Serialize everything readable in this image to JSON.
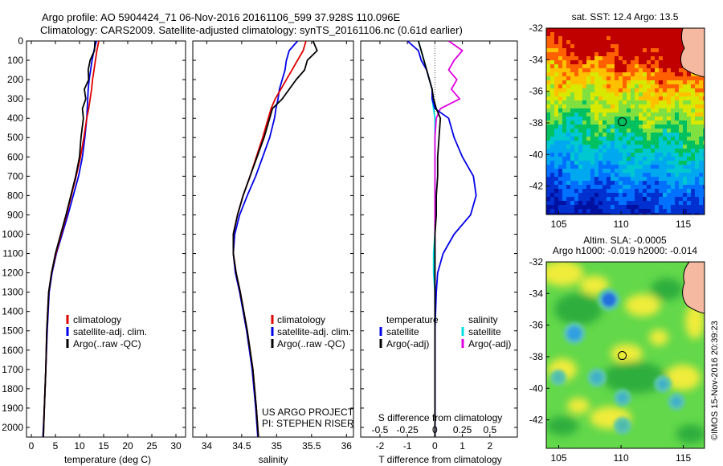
{
  "header": {
    "title_line1": "Argo profile: AO 5904424_71 06-Nov-2016 20161106_599 37.928S 110.096E",
    "title_line2": "Climatology: CARS2009. Satellite-adjusted climatology: synTS_20161106.nc (0.61d earlier)"
  },
  "colors": {
    "climatology": "#e00000",
    "satellite": "#0000e6",
    "argo": "#000000",
    "salinity_satellite": "#00e0e0",
    "salinity_argo": "#e000e0"
  },
  "depth_axis": {
    "ylim": [
      0,
      2050
    ],
    "ticks": [
      "0",
      "100",
      "200",
      "300",
      "400",
      "500",
      "600",
      "700",
      "800",
      "900",
      "1000",
      "1100",
      "1200",
      "1300",
      "1400",
      "1500",
      "1600",
      "1700",
      "1800",
      "1900",
      "2000"
    ]
  },
  "chart_data": [
    {
      "type": "line",
      "name": "temperature-profile",
      "xlabel": "temperature (deg C)",
      "xlim": [
        -1,
        32
      ],
      "xticks": [
        0,
        5,
        10,
        15,
        20,
        25,
        30
      ],
      "xtick_labels": [
        "0",
        "5",
        "10",
        "15",
        "20",
        "25",
        "30"
      ],
      "y": [
        0,
        50,
        100,
        150,
        200,
        250,
        300,
        350,
        400,
        500,
        600,
        700,
        800,
        900,
        1000,
        1100,
        1200,
        1300,
        1500,
        1700,
        1900,
        2050
      ],
      "series": [
        {
          "name": "climatology",
          "values": [
            14.0,
            13.6,
            13.3,
            13.0,
            12.7,
            12.5,
            12.2,
            11.9,
            11.5,
            10.9,
            10.2,
            9.3,
            8.3,
            7.3,
            6.2,
            5.1,
            4.2,
            3.6,
            3.2,
            3.0,
            2.7,
            2.5
          ]
        },
        {
          "name": "satellite-adj. clim.",
          "values": [
            13.5,
            13.0,
            12.6,
            12.3,
            12.0,
            11.8,
            11.7,
            11.6,
            11.5,
            11.1,
            10.6,
            9.8,
            8.7,
            7.6,
            6.4,
            5.2,
            4.3,
            3.7,
            3.3,
            3.0,
            2.7,
            2.4
          ]
        },
        {
          "name": "Argo(..raw -QC)",
          "values": [
            13.2,
            13.1,
            12.2,
            11.8,
            11.9,
            11.0,
            11.3,
            10.6,
            10.8,
            10.3,
            10.0,
            9.2,
            8.2,
            7.2,
            6.1,
            5.0,
            4.2,
            3.6,
            3.2,
            3.0,
            2.7,
            2.5
          ]
        }
      ],
      "legend": {
        "placement": "lower-middle",
        "entries": [
          "climatology",
          "satellite-adj. clim.",
          "Argo(..raw -QC)"
        ]
      }
    },
    {
      "type": "line",
      "name": "salinity-profile",
      "xlabel": "salinity",
      "xlim": [
        33.8,
        36.1
      ],
      "xticks": [
        34,
        34.5,
        35,
        35.5,
        36
      ],
      "xtick_labels": [
        "34",
        "34.5",
        "35",
        "35.5",
        "36"
      ],
      "y": [
        0,
        50,
        100,
        150,
        200,
        250,
        300,
        350,
        400,
        500,
        600,
        700,
        800,
        900,
        1000,
        1100,
        1200,
        1300,
        1500,
        1700,
        1900,
        2050
      ],
      "series": [
        {
          "name": "climatology",
          "values": [
            35.42,
            35.38,
            35.3,
            35.22,
            35.14,
            35.06,
            34.98,
            34.92,
            34.88,
            34.8,
            34.71,
            34.62,
            34.52,
            34.44,
            34.38,
            34.38,
            34.42,
            34.48,
            34.58,
            34.66,
            34.71,
            34.74
          ]
        },
        {
          "name": "satellite-adj. clim.",
          "values": [
            35.3,
            35.18,
            35.14,
            35.12,
            35.08,
            35.04,
            35.02,
            34.99,
            34.97,
            34.9,
            34.8,
            34.7,
            34.58,
            34.47,
            34.4,
            34.38,
            34.41,
            34.47,
            34.57,
            34.65,
            34.7,
            34.73
          ]
        },
        {
          "name": "Argo(..raw -QC)",
          "values": [
            35.52,
            35.58,
            35.44,
            35.4,
            35.28,
            35.18,
            35.08,
            34.94,
            34.9,
            34.82,
            34.72,
            34.62,
            34.52,
            34.44,
            34.38,
            34.38,
            34.42,
            34.48,
            34.58,
            34.66,
            34.71,
            34.74
          ]
        }
      ],
      "legend": {
        "placement": "lower-middle",
        "entries": [
          "climatology",
          "satellite-adj. clim.",
          "Argo(..raw -QC)"
        ]
      },
      "annotations": [
        "US ARGO PROJECT",
        "PI: STEPHEN RISER"
      ]
    },
    {
      "type": "line",
      "name": "difference-profile",
      "xlabel": "T difference from climatology",
      "xlim": [
        -2.7,
        3.0
      ],
      "xticks": [
        -2,
        -1,
        0,
        1,
        2
      ],
      "xtick_labels": [
        "-2",
        "-1",
        "0",
        "1",
        "2"
      ],
      "top_xlabel": "S difference from climatology",
      "top_xticks": [
        -0.5,
        -0.25,
        0,
        0.25,
        0.5
      ],
      "top_xtick_labels": [
        "-0.5",
        "-0.25",
        "0",
        "0.25",
        "0.5"
      ],
      "y": [
        0,
        50,
        100,
        150,
        200,
        250,
        300,
        350,
        400,
        500,
        600,
        700,
        800,
        900,
        1000,
        1100,
        1200,
        1300,
        1500,
        1700,
        1900,
        2050
      ],
      "series": [
        {
          "name": "temperature satellite",
          "values": [
            -1.0,
            -0.6,
            -0.5,
            -0.3,
            -0.2,
            -0.1,
            -0.1,
            0.0,
            0.5,
            0.7,
            1.0,
            1.4,
            1.5,
            1.3,
            0.7,
            0.3,
            0.1,
            0.05,
            0.0,
            0.0,
            0.0,
            0.0
          ]
        },
        {
          "name": "temperature Argo(-adj)",
          "values": [
            -0.6,
            -0.5,
            -0.4,
            -0.3,
            -0.2,
            -0.1,
            -0.05,
            0.05,
            0.2,
            0.15,
            0.1,
            0.1,
            0.05,
            0.05,
            0.0,
            0.0,
            0.0,
            0.0,
            0.0,
            0.0,
            0.0,
            0.0
          ]
        },
        {
          "name": "salinity satellite",
          "values": [
            -0.6,
            -0.5,
            -0.4,
            -0.3,
            -0.2,
            -0.1,
            -0.1,
            -0.05,
            0.0,
            0.0,
            0.0,
            0.0,
            0.0,
            0.0,
            0.0,
            -0.05,
            -0.05,
            0.0,
            0.0,
            0.0,
            0.0,
            0.0
          ]
        },
        {
          "name": "salinity Argo(-adj)",
          "values": [
            0.5,
            1.0,
            0.7,
            0.5,
            0.8,
            0.6,
            0.9,
            0.2,
            0.05,
            0.0,
            0.0,
            0.0,
            0.0,
            0.0,
            0.0,
            0.0,
            0.0,
            0.0,
            0.0,
            0.0,
            0.0,
            0.0
          ]
        }
      ],
      "legend": {
        "temperature_title": "temperature",
        "salinity_title": "salinity",
        "temperature_entries": [
          "satellite",
          "Argo(-adj)"
        ],
        "salinity_entries": [
          "satellite",
          "Argo(-adj)"
        ]
      }
    },
    {
      "type": "heatmap",
      "name": "sst-map",
      "title": "sat. SST: 12.4  Argo: 13.5",
      "xlim": [
        104,
        116.7
      ],
      "ylim": [
        -43.8,
        -32
      ],
      "xticks": [
        105,
        110,
        115
      ],
      "xtick_labels": [
        "105",
        "110",
        "115"
      ],
      "yticks": [
        -32,
        -34,
        -36,
        -38,
        -40,
        -42
      ],
      "ytick_labels": [
        "-32",
        "-34",
        "-36",
        "-38",
        "-40",
        "-42"
      ],
      "marker": {
        "lon": 110.096,
        "lat": -37.928
      }
    },
    {
      "type": "heatmap",
      "name": "sla-map",
      "title_line1": "Altim. SLA: -0.0005",
      "title_line2": "Argo h1000: -0.019  h2000: -0.014",
      "xlim": [
        104,
        116.7
      ],
      "ylim": [
        -43.8,
        -32
      ],
      "xticks": [
        105,
        110,
        115
      ],
      "xtick_labels": [
        "105",
        "110",
        "115"
      ],
      "yticks": [
        -32,
        -34,
        -36,
        -38,
        -40,
        -42
      ],
      "ytick_labels": [
        "-32",
        "-34",
        "-36",
        "-38",
        "-40",
        "-42"
      ],
      "marker": {
        "lon": 110.096,
        "lat": -37.928
      }
    }
  ],
  "footer": {
    "credit": "©IMOS 15-Nov-2016 20:39:23"
  }
}
